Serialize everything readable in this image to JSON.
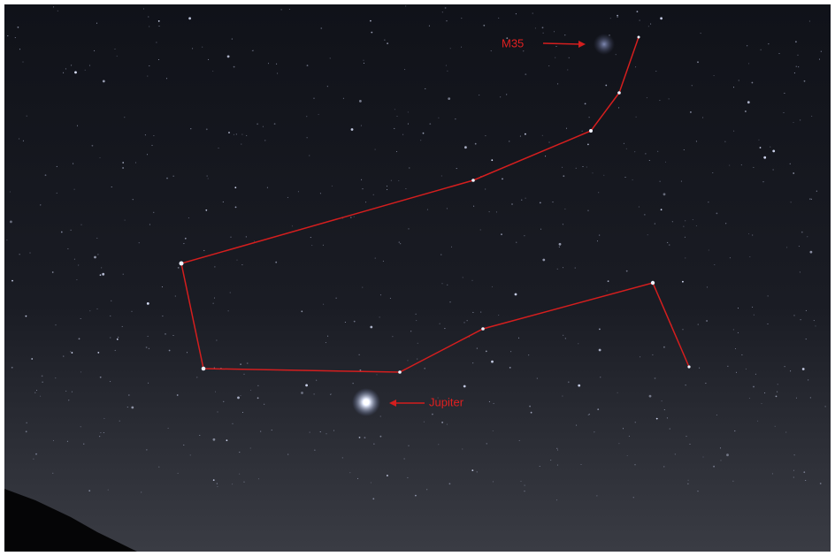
{
  "annotations": [
    {
      "label": "M35"
    },
    {
      "label": "Jupiter"
    }
  ]
}
